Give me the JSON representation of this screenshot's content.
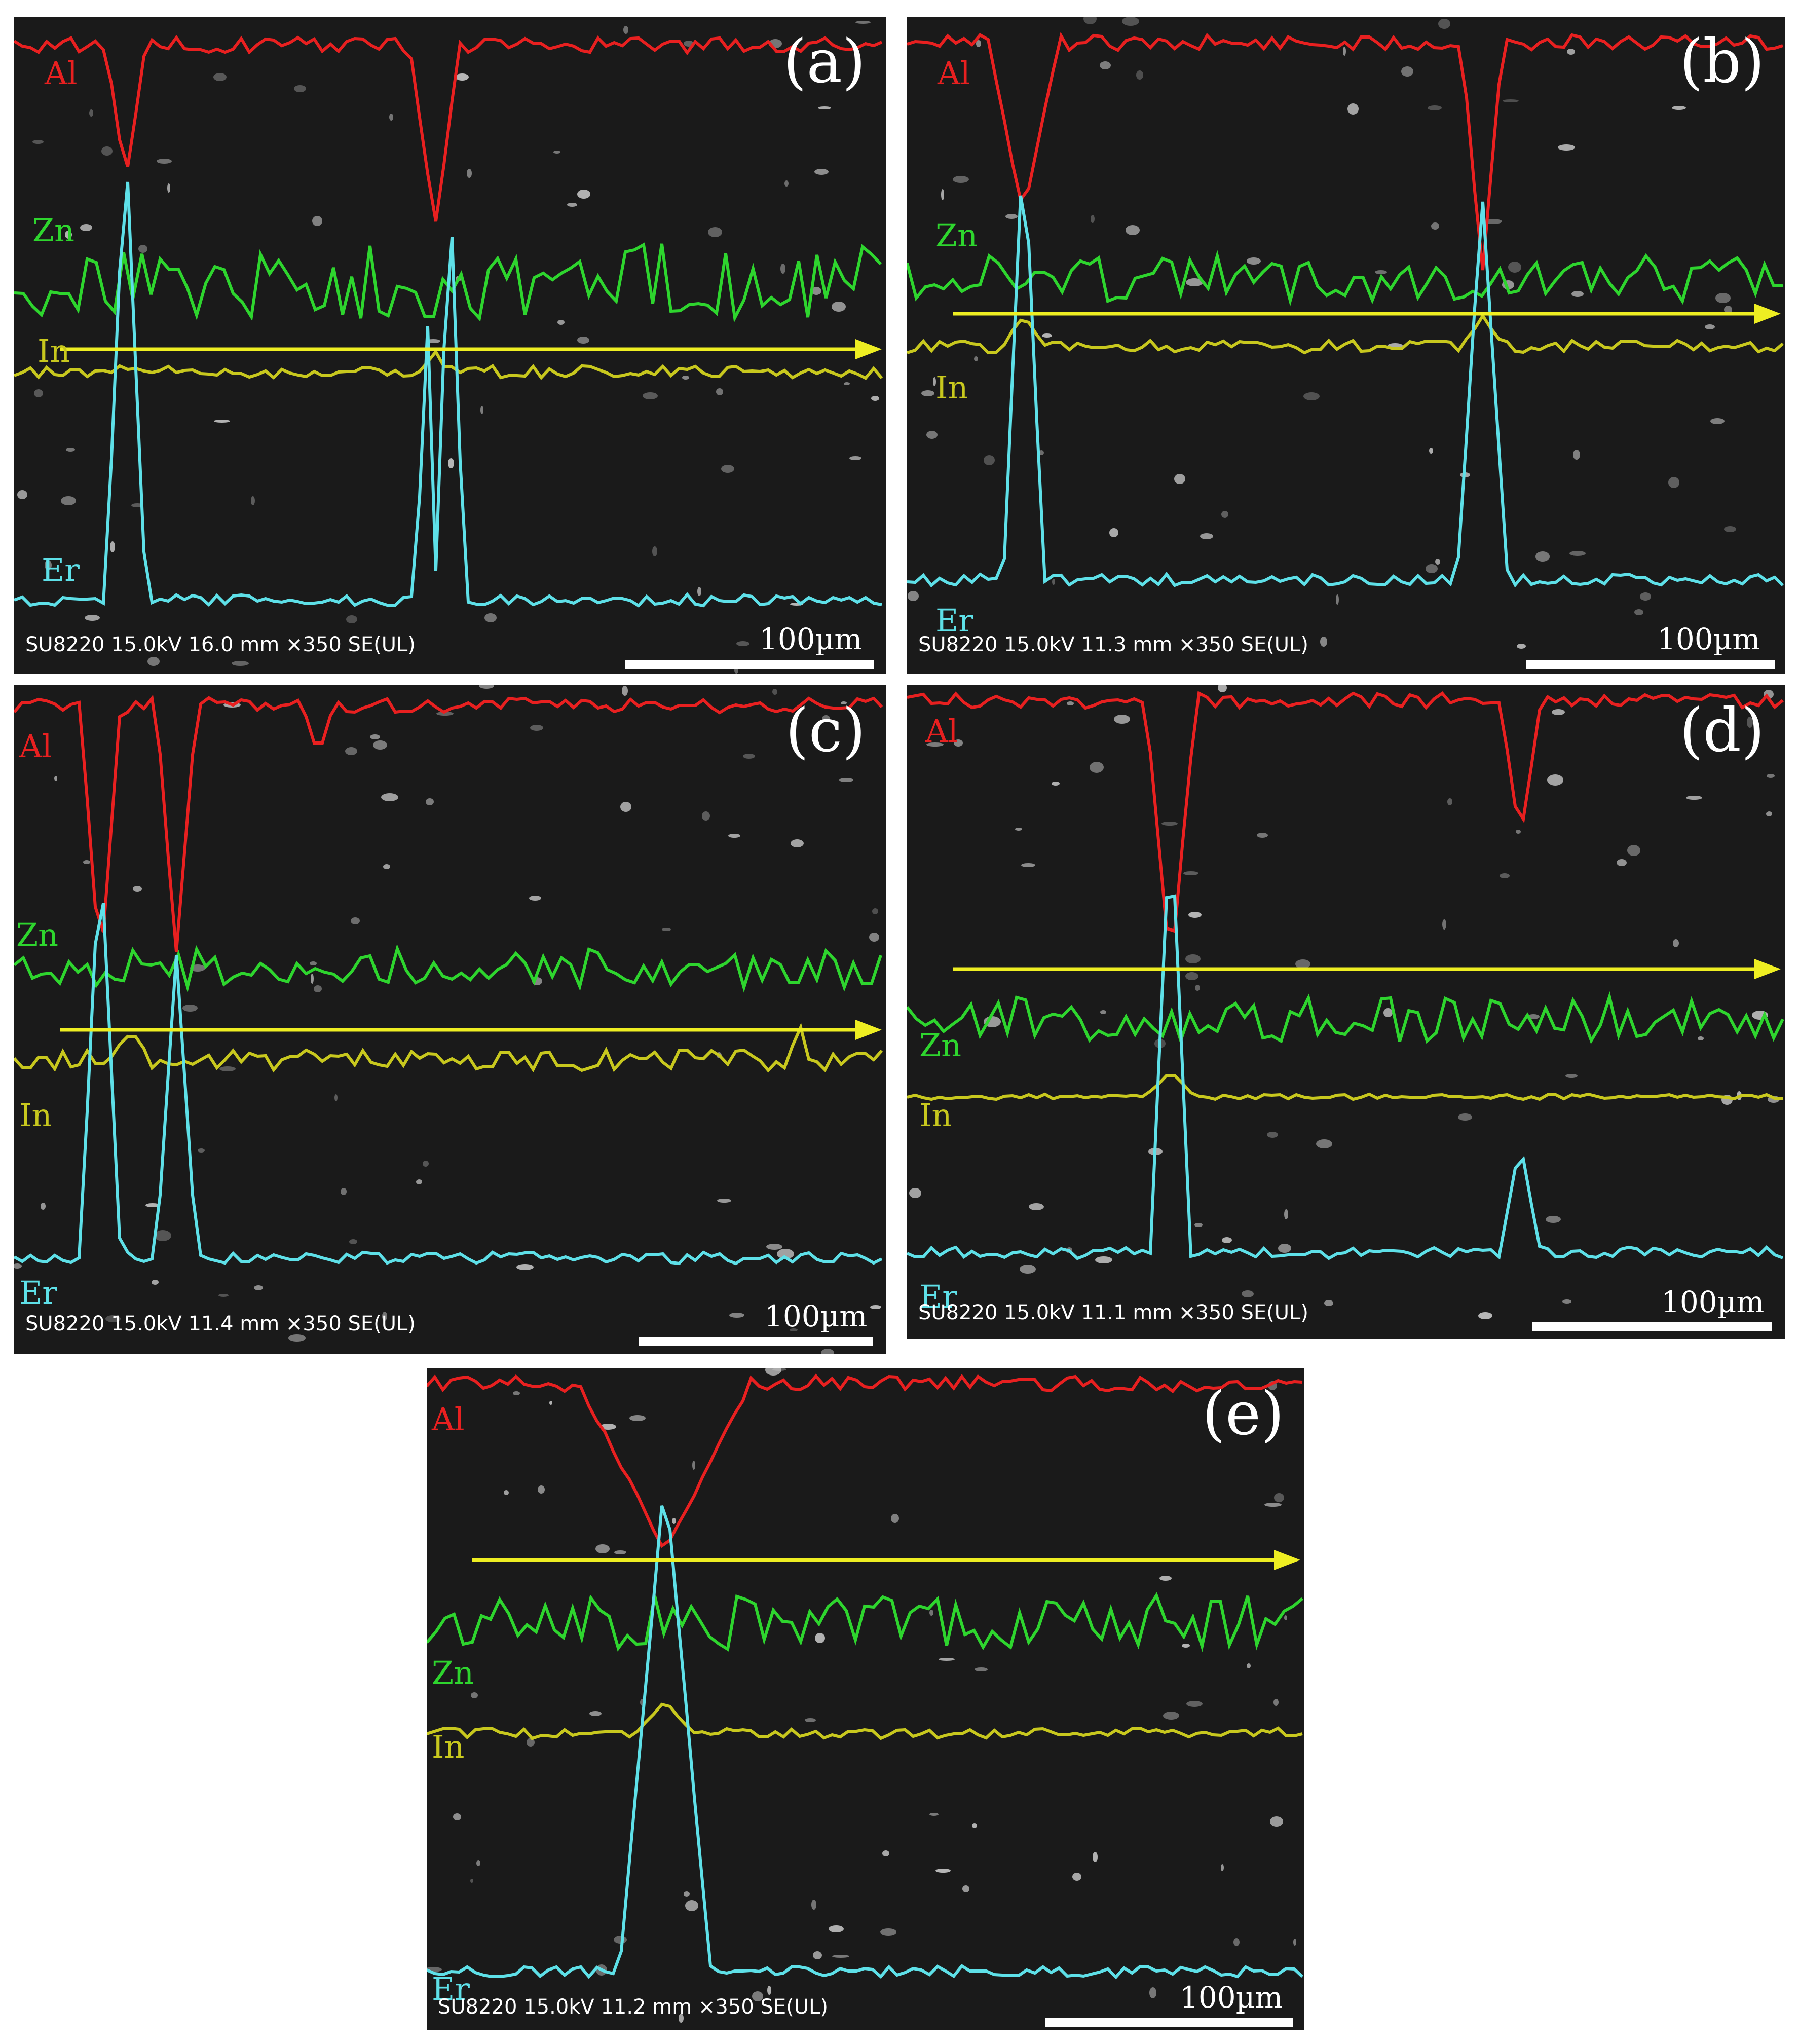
{
  "colors": {
    "Al": "#e82020",
    "Zn": "#2ed52e",
    "In": "#c8c81e",
    "Er": "#5ee0e8",
    "arrow": "#eeee22"
  },
  "panels": [
    {
      "label": "(a)",
      "elements": [
        "Al",
        "Zn",
        "In",
        "Er"
      ],
      "meta": "SU8220 15.0kV 16.0 mm ×350 SE(UL)",
      "scale": "100µm"
    },
    {
      "label": "(b)",
      "elements": [
        "Al",
        "Zn",
        "In",
        "Er"
      ],
      "meta": "SU8220 15.0kV 11.3 mm ×350 SE(UL)",
      "scale": "100µm"
    },
    {
      "label": "(c)",
      "elements": [
        "Al",
        "Zn",
        "In",
        "Er"
      ],
      "meta": "SU8220 15.0kV 11.4 mm ×350 SE(UL)",
      "scale": "100µm"
    },
    {
      "label": "(d)",
      "elements": [
        "Al",
        "Zn",
        "In",
        "Er"
      ],
      "meta": "SU8220 15.0kV 11.1 mm ×350 SE(UL)",
      "scale": "100µm"
    },
    {
      "label": "(e)",
      "elements": [
        "Al",
        "Zn",
        "In",
        "Er"
      ],
      "meta": "SU8220 15.0kV 11.2 mm ×350 SE(UL)",
      "scale": "100µm"
    }
  ]
}
